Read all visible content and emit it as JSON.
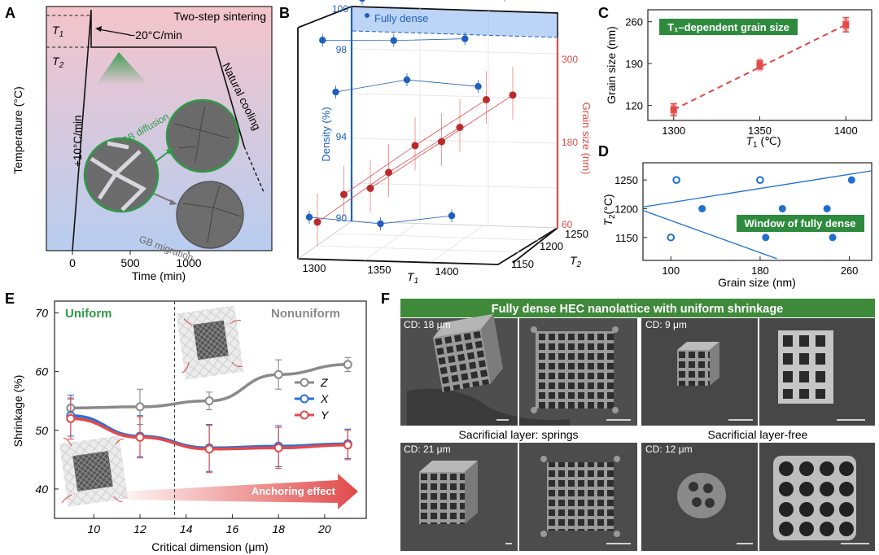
{
  "panels": {
    "A": {
      "letter": "A",
      "title": "Two-step sintering",
      "t1": "T",
      "t1_sub": "1",
      "t2": "T",
      "t2_sub": "2",
      "cool_rate": "−20°C/min",
      "heat_rate": "+10°C/min",
      "natural": "Natural cooling",
      "gb_diff": "GB diffusion",
      "gb_mig": "GB migration",
      "ylabel": "Temperature (°C)",
      "xlabel": "Time (min)",
      "xticks": [
        "0",
        "500",
        "1000"
      ],
      "colors": {
        "top": "#f2c6cc",
        "bottom": "#b9cdee",
        "accent": "#2e9a46"
      }
    },
    "B": {
      "letter": "B",
      "density_label": "Density (%)",
      "grain_label": "Grain size (nm)",
      "fully_dense": "Fully dense",
      "density_ticks": [
        "100",
        "98",
        "94",
        "90"
      ],
      "grain_ticks": [
        "300",
        "180",
        "60"
      ],
      "t1_ticks": [
        "1300",
        "1350",
        "1400"
      ],
      "t2_ticks": [
        "1250",
        "1200",
        "1150"
      ],
      "t1_label": "T",
      "t1_sub": "1",
      "t2_label": "T",
      "t2_sub": "2",
      "colors": {
        "density": "#1f5fbf",
        "grain": "#e24a4a"
      }
    },
    "C": {
      "letter": "C",
      "banner": "T₁–dependent grain size",
      "ylabel": "Grain size (nm)",
      "xlabel": "T",
      "xsub": "1",
      "xunit": " (℃)",
      "colors": {
        "mark": "#e24a4a",
        "banner": "#2e8b3e"
      }
    },
    "D": {
      "letter": "D",
      "banner": "Window of fully dense",
      "ylabel": "T",
      "ysub": "2",
      "yunit": "(°C)",
      "xlabel": "Grain size (nm)",
      "colors": {
        "mark": "#1f6fd1",
        "banner": "#2e8b3e"
      }
    },
    "E": {
      "letter": "E",
      "uniform": "Uniform",
      "nonuniform": "Nonuniform",
      "ylabel": "Shrinkage (%)",
      "xlabel": "Critical dimension (μm)",
      "anchoring": "Anchoring effect",
      "colors": {
        "Z": "#8a8a8a",
        "X": "#2f6fd6",
        "Y": "#e24a4a",
        "uniform": "#2e9a46"
      }
    },
    "F": {
      "letter": "F",
      "banner": "Fully dense HEC nanolattice with uniform shrinkage",
      "cd": [
        "CD: 18 μm",
        "CD: 9 μm",
        "CD: 21 μm",
        "CD: 12 μm"
      ],
      "springs": "Sacrificial layer: springs",
      "free": "Sacrificial layer-free",
      "colors": {
        "banner": "#3f8a3a"
      }
    }
  },
  "chart_data": [
    {
      "id": "B",
      "type": "scatter",
      "title": "",
      "xlabel": "T1",
      "ylabel": "Density (%) / Grain size (nm)",
      "zlabel": "T2",
      "series": [
        {
          "name": "Density",
          "x": [
            1300,
            1300,
            1300,
            1300,
            1350,
            1350,
            1350,
            1350,
            1400,
            1400,
            1400,
            1400
          ],
          "y": [
            99.3,
            95.5,
            90.2,
            98.3,
            99.9,
            96.2,
            90.0,
            98.4,
            99.7,
            96.0,
            90.5,
            98.6
          ]
        },
        {
          "name": "Grain size",
          "x": [
            1300,
            1300,
            1300,
            1350,
            1350,
            1350,
            1400,
            1400,
            1400
          ],
          "y": [
            118,
            128,
            110,
            182,
            195,
            178,
            246,
            258,
            240
          ]
        }
      ],
      "ylim_density": [
        90,
        100
      ],
      "ylim_grain": [
        60,
        300
      ],
      "xlim": [
        1300,
        1400
      ],
      "zlim": [
        1150,
        1250
      ]
    },
    {
      "id": "C",
      "type": "scatter",
      "title": "T1-dependent grain size",
      "xlabel": "T1 (℃)",
      "ylabel": "Grain size (nm)",
      "x": [
        1300,
        1350,
        1400
      ],
      "y": [
        113,
        188,
        255
      ],
      "yerr": [
        10,
        7,
        12
      ],
      "xticks": [
        1300,
        1350,
        1400
      ],
      "yticks": [
        120,
        190,
        260
      ],
      "xlim": [
        1285,
        1415
      ],
      "ylim": [
        95,
        280
      ]
    },
    {
      "id": "D",
      "type": "scatter",
      "title": "Window of fully dense",
      "xlabel": "Grain size (nm)",
      "ylabel": "T2 (°C)",
      "series": [
        {
          "name": "filled",
          "x": [
            128,
            200,
            240,
            185,
            245,
            262
          ],
          "y": [
            1200,
            1200,
            1200,
            1150,
            1150,
            1250
          ]
        },
        {
          "name": "open",
          "x": [
            105,
            180,
            100
          ],
          "y": [
            1250,
            1250,
            1150
          ]
        }
      ],
      "boundary_lines": [
        {
          "x": [
            75,
            280
          ],
          "y": [
            1203,
            1266
          ]
        },
        {
          "x": [
            75,
            195
          ],
          "y": [
            1197,
            1113
          ]
        }
      ],
      "xticks": [
        100,
        180,
        260
      ],
      "yticks": [
        1150,
        1200,
        1250
      ],
      "xlim": [
        75,
        280
      ],
      "ylim": [
        1110,
        1280
      ]
    },
    {
      "id": "E",
      "type": "line",
      "title": "",
      "xlabel": "Critical dimension (μm)",
      "ylabel": "Shrinkage (%)",
      "x": [
        9,
        12,
        15,
        18,
        21
      ],
      "series": [
        {
          "name": "Z",
          "values": [
            53.8,
            54.0,
            55.0,
            59.5,
            61.2
          ],
          "err": [
            1.5,
            3.0,
            1.5,
            2.5,
            1.2
          ]
        },
        {
          "name": "X",
          "values": [
            52.5,
            49.0,
            47.0,
            47.3,
            47.7
          ],
          "err": [
            3.5,
            3.5,
            4.0,
            3.5,
            2.5
          ]
        },
        {
          "name": "Y",
          "values": [
            52.0,
            48.8,
            46.8,
            47.0,
            47.5
          ],
          "err": [
            3.5,
            3.5,
            4.0,
            3.5,
            2.5
          ]
        }
      ],
      "xticks": [
        10,
        12,
        14,
        16,
        18,
        20
      ],
      "yticks": [
        40,
        50,
        60,
        70
      ],
      "xlim": [
        8.3,
        21.8
      ],
      "ylim": [
        35,
        72
      ],
      "divider_x": 13.5
    }
  ]
}
